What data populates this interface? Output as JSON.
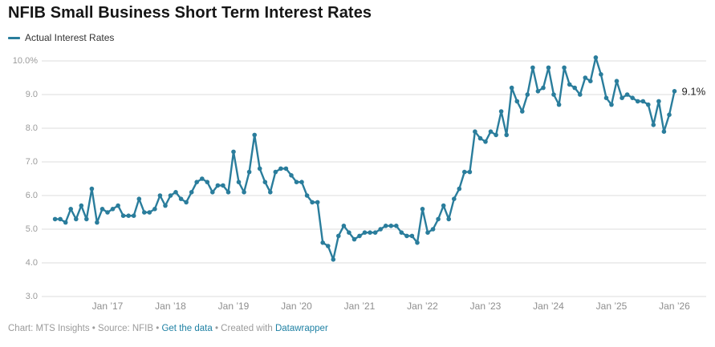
{
  "header": {
    "title": "NFIB Small Business Short Term Interest Rates"
  },
  "legend": {
    "label": "Actual Interest Rates"
  },
  "footer": {
    "prefix": "Chart: MTS Insights • Source: NFIB • ",
    "data_link": "Get the data",
    "middle": " • Created with ",
    "tool_link": "Datawrapper"
  },
  "colors": {
    "line": "#2a7d9c",
    "grid": "#dddddd",
    "link": "#1f81a4",
    "axis_text": "#9b9b9b"
  },
  "chart_data": {
    "type": "line",
    "title": "NFIB Small Business Short Term Interest Rates",
    "legend_position": "top-left",
    "grid": "horizontal",
    "ylim": [
      3.0,
      10.0
    ],
    "y_tick_values": [
      10,
      9,
      8,
      7,
      6,
      5,
      4,
      3
    ],
    "y_tick_labels": [
      "10.0%",
      "9.0",
      "8.0",
      "7.0",
      "6.0",
      "5.0",
      "4.0",
      "3.0"
    ],
    "x_tick_labels": [
      "Jan ’17",
      "Jan ’18",
      "Jan ’19",
      "Jan ’20",
      "Jan ’21",
      "Jan ’22",
      "Jan ’23",
      "Jan ’24",
      "Jan ’25",
      "Jan ’26"
    ],
    "end_label": "9.1%",
    "series": [
      {
        "name": "Actual Interest Rates",
        "start": "2016-03",
        "frequency": "monthly",
        "end": "2026-01",
        "values": [
          5.3,
          5.3,
          5.2,
          5.6,
          5.3,
          5.7,
          5.3,
          6.2,
          5.2,
          5.6,
          5.5,
          5.6,
          5.7,
          5.4,
          5.4,
          5.4,
          5.9,
          5.5,
          5.5,
          5.6,
          6.0,
          5.7,
          6.0,
          6.1,
          5.9,
          5.8,
          6.1,
          6.4,
          6.5,
          6.4,
          6.1,
          6.3,
          6.3,
          6.1,
          7.3,
          6.4,
          6.1,
          6.7,
          7.8,
          6.8,
          6.4,
          6.1,
          6.7,
          6.8,
          6.8,
          6.6,
          6.4,
          6.4,
          6.0,
          5.8,
          5.8,
          4.6,
          4.5,
          4.1,
          4.8,
          5.1,
          4.9,
          4.7,
          4.8,
          4.9,
          4.9,
          4.9,
          5.0,
          5.1,
          5.1,
          5.1,
          4.9,
          4.8,
          4.8,
          4.6,
          5.6,
          4.9,
          5.0,
          5.3,
          5.7,
          5.3,
          5.9,
          6.2,
          6.7,
          6.7,
          7.9,
          7.7,
          7.6,
          7.9,
          7.8,
          8.5,
          7.8,
          9.2,
          8.8,
          8.5,
          9.0,
          9.8,
          9.1,
          9.2,
          9.8,
          9.0,
          8.7,
          9.8,
          9.3,
          9.2,
          9.0,
          9.5,
          9.4,
          10.1,
          9.6,
          8.9,
          8.7,
          9.4,
          8.9,
          9.0,
          8.9,
          8.8,
          8.8,
          8.7,
          8.1,
          8.8,
          7.9,
          8.4,
          9.1
        ]
      }
    ]
  }
}
